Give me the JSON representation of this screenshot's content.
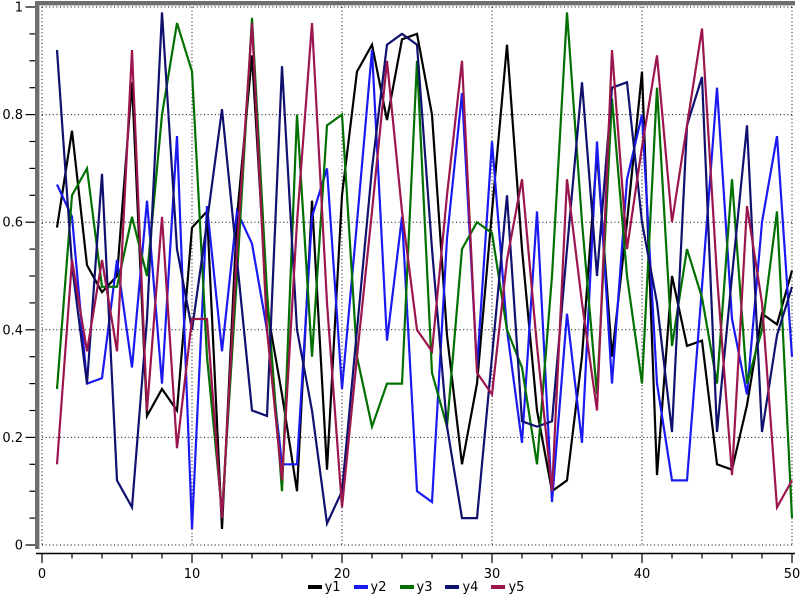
{
  "styles": {
    "background": "#ffffff",
    "grid_color": "#000000",
    "frame_dark": "#6e6e6e",
    "frame_light": "#c6c6c6",
    "axis_color": "#000000",
    "text_color": "#000000"
  },
  "chart_data": {
    "type": "line",
    "title": "",
    "xlabel": "",
    "ylabel": "",
    "xlim": [
      0,
      50
    ],
    "ylim": [
      0,
      1
    ],
    "x_ticks": [
      0,
      10,
      20,
      30,
      40,
      50
    ],
    "x_tick_labels": [
      "0",
      "10",
      "20",
      "30",
      "40",
      "50"
    ],
    "y_ticks": [
      0,
      0.2,
      0.4,
      0.6,
      0.8,
      1
    ],
    "y_tick_labels": [
      "0",
      "0.2",
      "0.4",
      "0.6",
      "0.8",
      "1"
    ],
    "x_minor_step": 2,
    "y_minor_step": 0.05,
    "grid": "dotted",
    "legend_position": "bottom-center",
    "x": [
      1,
      2,
      3,
      4,
      5,
      6,
      7,
      8,
      9,
      10,
      11,
      12,
      13,
      14,
      15,
      16,
      17,
      18,
      19,
      20,
      21,
      22,
      23,
      24,
      25,
      26,
      27,
      28,
      29,
      30,
      31,
      32,
      33,
      34,
      35,
      36,
      37,
      38,
      39,
      40,
      41,
      42,
      43,
      44,
      45,
      46,
      47,
      48,
      49,
      50
    ],
    "series": [
      {
        "name": "y1",
        "color": "#000000",
        "values": [
          0.59,
          0.77,
          0.52,
          0.47,
          0.5,
          0.86,
          0.24,
          0.29,
          0.25,
          0.59,
          0.62,
          0.03,
          0.61,
          0.91,
          0.44,
          0.28,
          0.1,
          0.64,
          0.14,
          0.65,
          0.88,
          0.93,
          0.79,
          0.94,
          0.95,
          0.8,
          0.39,
          0.15,
          0.3,
          0.62,
          0.93,
          0.55,
          0.25,
          0.1,
          0.12,
          0.35,
          0.73,
          0.35,
          0.6,
          0.88,
          0.13,
          0.5,
          0.37,
          0.38,
          0.15,
          0.14,
          0.26,
          0.43,
          0.41,
          0.51
        ]
      },
      {
        "name": "y2",
        "color": "#1a1af0",
        "values": [
          0.67,
          0.61,
          0.3,
          0.31,
          0.53,
          0.33,
          0.64,
          0.3,
          0.76,
          0.03,
          0.63,
          0.36,
          0.62,
          0.56,
          0.4,
          0.15,
          0.15,
          0.61,
          0.7,
          0.29,
          0.6,
          0.92,
          0.38,
          0.61,
          0.1,
          0.08,
          0.57,
          0.84,
          0.33,
          0.75,
          0.4,
          0.19,
          0.62,
          0.08,
          0.43,
          0.19,
          0.75,
          0.3,
          0.68,
          0.8,
          0.3,
          0.12,
          0.12,
          0.48,
          0.85,
          0.42,
          0.28,
          0.6,
          0.76,
          0.35
        ]
      },
      {
        "name": "y3",
        "color": "#017001",
        "values": [
          0.29,
          0.65,
          0.7,
          0.48,
          0.48,
          0.61,
          0.5,
          0.8,
          0.97,
          0.88,
          0.35,
          0.06,
          0.5,
          0.98,
          0.47,
          0.1,
          0.8,
          0.35,
          0.78,
          0.8,
          0.35,
          0.22,
          0.3,
          0.3,
          0.9,
          0.32,
          0.22,
          0.55,
          0.6,
          0.58,
          0.4,
          0.33,
          0.15,
          0.5,
          0.99,
          0.6,
          0.28,
          0.83,
          0.5,
          0.3,
          0.85,
          0.37,
          0.55,
          0.46,
          0.3,
          0.68,
          0.3,
          0.4,
          0.62,
          0.05
        ]
      },
      {
        "name": "y4",
        "color": "#10106e",
        "values": [
          0.92,
          0.52,
          0.3,
          0.69,
          0.12,
          0.07,
          0.42,
          0.99,
          0.55,
          0.4,
          0.6,
          0.81,
          0.53,
          0.25,
          0.24,
          0.89,
          0.4,
          0.25,
          0.04,
          0.1,
          0.4,
          0.7,
          0.93,
          0.95,
          0.93,
          0.55,
          0.22,
          0.05,
          0.05,
          0.35,
          0.65,
          0.23,
          0.22,
          0.23,
          0.55,
          0.86,
          0.5,
          0.85,
          0.86,
          0.6,
          0.45,
          0.21,
          0.78,
          0.87,
          0.21,
          0.5,
          0.78,
          0.21,
          0.39,
          0.48
        ]
      },
      {
        "name": "y5",
        "color": "#9c164e",
        "values": [
          0.15,
          0.53,
          0.36,
          0.53,
          0.36,
          0.92,
          0.25,
          0.61,
          0.18,
          0.42,
          0.42,
          0.05,
          0.55,
          0.97,
          0.4,
          0.12,
          0.6,
          0.97,
          0.45,
          0.07,
          0.35,
          0.62,
          0.9,
          0.62,
          0.4,
          0.36,
          0.65,
          0.9,
          0.32,
          0.28,
          0.53,
          0.68,
          0.37,
          0.1,
          0.68,
          0.45,
          0.25,
          0.92,
          0.55,
          0.74,
          0.91,
          0.6,
          0.78,
          0.96,
          0.5,
          0.13,
          0.63,
          0.45,
          0.07,
          0.12
        ]
      }
    ]
  }
}
